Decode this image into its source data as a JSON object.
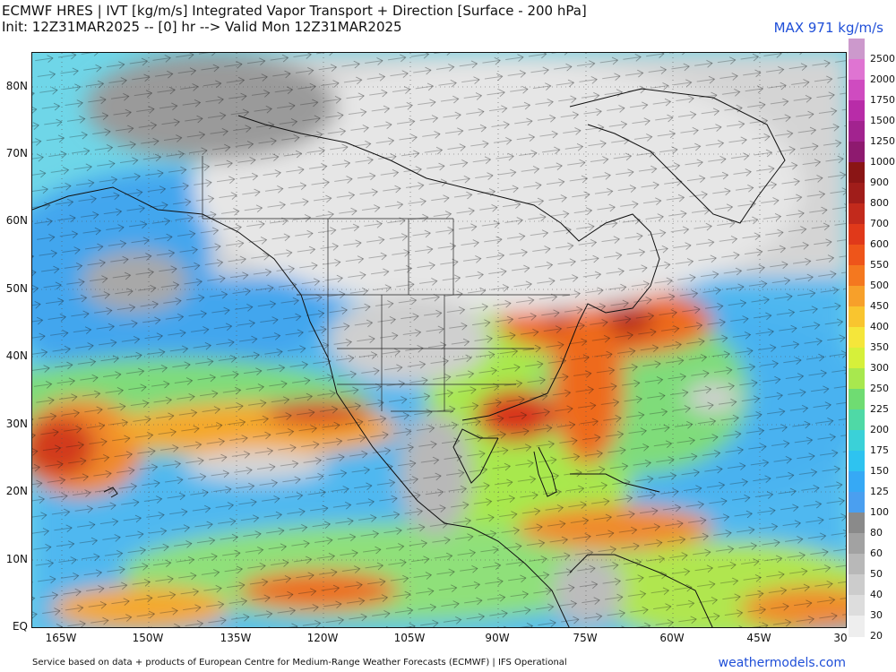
{
  "header": {
    "title": "ECMWF HRES | IVT [kg/m/s] Integrated Vapor Transport + Direction [Surface - 200 hPa]",
    "subtitle": "Init: 12Z31MAR2025 -- [0] hr --> Valid Mon 12Z31MAR2025",
    "max_label": "MAX 971 kg/m/s"
  },
  "map": {
    "lat_labels": [
      "80N",
      "70N",
      "60N",
      "50N",
      "40N",
      "30N",
      "20N",
      "10N",
      "EQ"
    ],
    "lon_labels": [
      "165W",
      "150W",
      "135W",
      "120W",
      "105W",
      "90W",
      "75W",
      "60W",
      "45W",
      "30"
    ]
  },
  "colorbar": {
    "levels": [
      "20",
      "30",
      "40",
      "50",
      "60",
      "80",
      "100",
      "125",
      "150",
      "175",
      "200",
      "225",
      "250",
      "300",
      "350",
      "400",
      "450",
      "500",
      "550",
      "600",
      "700",
      "800",
      "900",
      "1000",
      "1250",
      "1500",
      "1750",
      "2000",
      "2500"
    ],
    "colors": [
      "#eeeeee",
      "#dddddd",
      "#cccccc",
      "#b8b8b8",
      "#a2a2a2",
      "#8a8a8a",
      "#4a9ff0",
      "#36a9f5",
      "#2ec3f0",
      "#3ad1d8",
      "#4fd9a6",
      "#6fdc72",
      "#a8e84e",
      "#d6f03a",
      "#f5e63a",
      "#f9c52f",
      "#f7a02a",
      "#f4781f",
      "#ee551a",
      "#e0391a",
      "#c22a1c",
      "#a01d1a",
      "#8a1515",
      "#8e1a6f",
      "#a2238f",
      "#b82ca8",
      "#cf4bc0",
      "#df74d2",
      "#cc99cc"
    ]
  },
  "footer": {
    "credit": "Service based on data + products of European Centre for Medium-Range Weather Forecasts (ECMWF) | IFS Operational",
    "site": "weathermodels.com"
  }
}
